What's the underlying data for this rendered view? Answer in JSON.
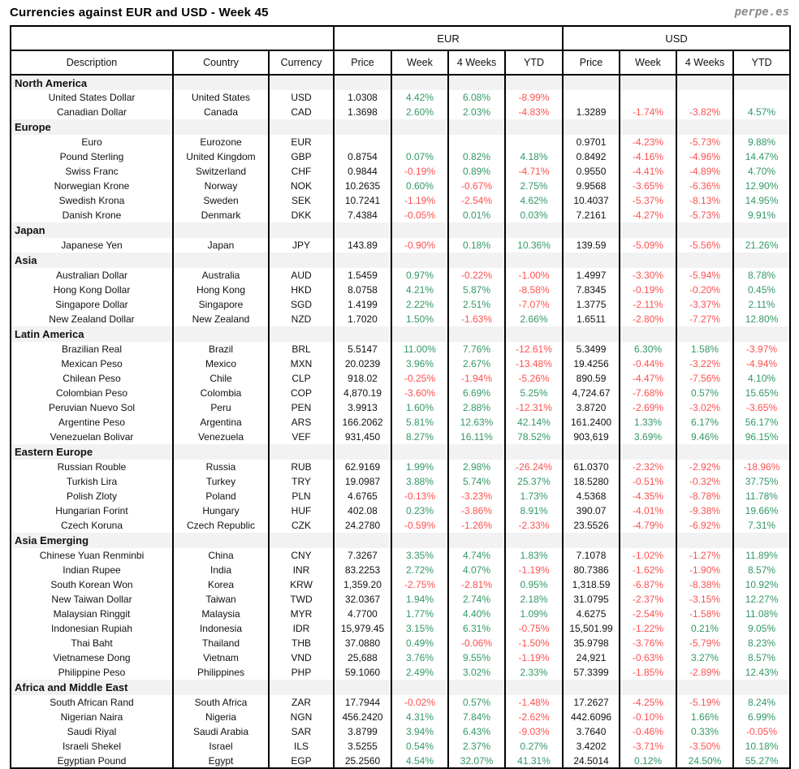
{
  "page": {
    "title": "Currencies against EUR and USD - Week 45",
    "brand": "perpe.es"
  },
  "table": {
    "group_headers": {
      "eur": "EUR",
      "usd": "USD"
    },
    "columns": [
      "Description",
      "Country",
      "Currency",
      "Price",
      "Week",
      "4 Weeks",
      "YTD",
      "Price",
      "Week",
      "4 Weeks",
      "YTD"
    ],
    "colors": {
      "positive": "#339966",
      "negative": "#FF5050",
      "text": "#111111",
      "section_bg": "#F2F2F2"
    },
    "sections": [
      {
        "name": "North America",
        "rows": [
          {
            "description": "United States Dollar",
            "country": "United States",
            "code": "USD",
            "values": [
              "1.0308",
              "4.42%",
              "6.08%",
              "-8.99%",
              "",
              "",
              "",
              ""
            ]
          },
          {
            "description": "Canadian Dollar",
            "country": "Canada",
            "code": "CAD",
            "values": [
              "1.3698",
              "2.60%",
              "2.03%",
              "-4.83%",
              "1.3289",
              "-1.74%",
              "-3.82%",
              "4.57%"
            ]
          }
        ]
      },
      {
        "name": "Europe",
        "rows": [
          {
            "description": "Euro",
            "country": "Eurozone",
            "code": "EUR",
            "values": [
              "",
              "",
              "",
              "",
              "0.9701",
              "-4.23%",
              "-5.73%",
              "9.88%"
            ]
          },
          {
            "description": "Pound Sterling",
            "country": "United Kingdom",
            "code": "GBP",
            "values": [
              "0.8754",
              "0.07%",
              "0.82%",
              "4.18%",
              "0.8492",
              "-4.16%",
              "-4.96%",
              "14.47%"
            ]
          },
          {
            "description": "Swiss Franc",
            "country": "Switzerland",
            "code": "CHF",
            "values": [
              "0.9844",
              "-0.19%",
              "0.89%",
              "-4.71%",
              "0.9550",
              "-4.41%",
              "-4.89%",
              "4.70%"
            ]
          },
          {
            "description": "Norwegian Krone",
            "country": "Norway",
            "code": "NOK",
            "values": [
              "10.2635",
              "0.60%",
              "-0.67%",
              "2.75%",
              "9.9568",
              "-3.65%",
              "-6.36%",
              "12.90%"
            ]
          },
          {
            "description": "Swedish Krona",
            "country": "Sweden",
            "code": "SEK",
            "values": [
              "10.7241",
              "-1.19%",
              "-2.54%",
              "4.62%",
              "10.4037",
              "-5.37%",
              "-8.13%",
              "14.95%"
            ]
          },
          {
            "description": "Danish Krone",
            "country": "Denmark",
            "code": "DKK",
            "values": [
              "7.4384",
              "-0.05%",
              "0.01%",
              "0.03%",
              "7.2161",
              "-4.27%",
              "-5.73%",
              "9.91%"
            ]
          }
        ]
      },
      {
        "name": "Japan",
        "rows": [
          {
            "description": "Japanese Yen",
            "country": "Japan",
            "code": "JPY",
            "values": [
              "143.89",
              "-0.90%",
              "0.18%",
              "10.36%",
              "139.59",
              "-5.09%",
              "-5.56%",
              "21.26%"
            ]
          }
        ]
      },
      {
        "name": "Asia",
        "rows": [
          {
            "description": "Australian Dollar",
            "country": "Australia",
            "code": "AUD",
            "values": [
              "1.5459",
              "0.97%",
              "-0.22%",
              "-1.00%",
              "1.4997",
              "-3.30%",
              "-5.94%",
              "8.78%"
            ]
          },
          {
            "description": "Hong Kong Dollar",
            "country": "Hong Kong",
            "code": "HKD",
            "values": [
              "8.0758",
              "4.21%",
              "5.87%",
              "-8.58%",
              "7.8345",
              "-0.19%",
              "-0.20%",
              "0.45%"
            ]
          },
          {
            "description": "Singapore Dollar",
            "country": "Singapore",
            "code": "SGD",
            "values": [
              "1.4199",
              "2.22%",
              "2.51%",
              "-7.07%",
              "1.3775",
              "-2.11%",
              "-3.37%",
              "2.11%"
            ]
          },
          {
            "description": "New Zealand Dollar",
            "country": "New Zealand",
            "code": "NZD",
            "values": [
              "1.7020",
              "1.50%",
              "-1.63%",
              "2.66%",
              "1.6511",
              "-2.80%",
              "-7.27%",
              "12.80%"
            ]
          }
        ]
      },
      {
        "name": "Latin America",
        "rows": [
          {
            "description": "Brazilian Real",
            "country": "Brazil",
            "code": "BRL",
            "values": [
              "5.5147",
              "11.00%",
              "7.76%",
              "-12.61%",
              "5.3499",
              "6.30%",
              "1.58%",
              "-3.97%"
            ]
          },
          {
            "description": "Mexican Peso",
            "country": "Mexico",
            "code": "MXN",
            "values": [
              "20.0239",
              "3.96%",
              "2.67%",
              "-13.48%",
              "19.4256",
              "-0.44%",
              "-3.22%",
              "-4.94%"
            ]
          },
          {
            "description": "Chilean Peso",
            "country": "Chile",
            "code": "CLP",
            "values": [
              "918.02",
              "-0.25%",
              "-1.94%",
              "-5.26%",
              "890.59",
              "-4.47%",
              "-7.56%",
              "4.10%"
            ]
          },
          {
            "description": "Colombian Peso",
            "country": "Colombia",
            "code": "COP",
            "values": [
              "4,870.19",
              "-3.60%",
              "6.69%",
              "5.25%",
              "4,724.67",
              "-7.68%",
              "0.57%",
              "15.65%"
            ]
          },
          {
            "description": "Peruvian Nuevo Sol",
            "country": "Peru",
            "code": "PEN",
            "values": [
              "3.9913",
              "1.60%",
              "2.88%",
              "-12.31%",
              "3.8720",
              "-2.69%",
              "-3.02%",
              "-3.65%"
            ]
          },
          {
            "description": "Argentine Peso",
            "country": "Argentina",
            "code": "ARS",
            "values": [
              "166.2062",
              "5.81%",
              "12.63%",
              "42.14%",
              "161.2400",
              "1.33%",
              "6.17%",
              "56.17%"
            ]
          },
          {
            "description": "Venezuelan Bolivar",
            "country": "Venezuela",
            "code": "VEF",
            "values": [
              "931,450",
              "8.27%",
              "16.11%",
              "78.52%",
              "903,619",
              "3.69%",
              "9.46%",
              "96.15%"
            ]
          }
        ]
      },
      {
        "name": "Eastern Europe",
        "rows": [
          {
            "description": "Russian Rouble",
            "country": "Russia",
            "code": "RUB",
            "values": [
              "62.9169",
              "1.99%",
              "2.98%",
              "-26.24%",
              "61.0370",
              "-2.32%",
              "-2.92%",
              "-18.96%"
            ]
          },
          {
            "description": "Turkish Lira",
            "country": "Turkey",
            "code": "TRY",
            "values": [
              "19.0987",
              "3.88%",
              "5.74%",
              "25.37%",
              "18.5280",
              "-0.51%",
              "-0.32%",
              "37.75%"
            ]
          },
          {
            "description": "Polish Zloty",
            "country": "Poland",
            "code": "PLN",
            "values": [
              "4.6765",
              "-0.13%",
              "-3.23%",
              "1.73%",
              "4.5368",
              "-4.35%",
              "-8.78%",
              "11.78%"
            ]
          },
          {
            "description": "Hungarian Forint",
            "country": "Hungary",
            "code": "HUF",
            "values": [
              "402.08",
              "0.23%",
              "-3.86%",
              "8.91%",
              "390.07",
              "-4.01%",
              "-9.38%",
              "19.66%"
            ]
          },
          {
            "description": "Czech Koruna",
            "country": "Czech Republic",
            "code": "CZK",
            "values": [
              "24.2780",
              "-0.59%",
              "-1.26%",
              "-2.33%",
              "23.5526",
              "-4.79%",
              "-6.92%",
              "7.31%"
            ]
          }
        ]
      },
      {
        "name": "Asia Emerging",
        "rows": [
          {
            "description": "Chinese Yuan Renminbi",
            "country": "China",
            "code": "CNY",
            "values": [
              "7.3267",
              "3.35%",
              "4.74%",
              "1.83%",
              "7.1078",
              "-1.02%",
              "-1.27%",
              "11.89%"
            ]
          },
          {
            "description": "Indian Rupee",
            "country": "India",
            "code": "INR",
            "values": [
              "83.2253",
              "2.72%",
              "4.07%",
              "-1.19%",
              "80.7386",
              "-1.62%",
              "-1.90%",
              "8.57%"
            ]
          },
          {
            "description": "South Korean Won",
            "country": "Korea",
            "code": "KRW",
            "values": [
              "1,359.20",
              "-2.75%",
              "-2.81%",
              "0.95%",
              "1,318.59",
              "-6.87%",
              "-8.38%",
              "10.92%"
            ]
          },
          {
            "description": "New Taiwan Dollar",
            "country": "Taiwan",
            "code": "TWD",
            "values": [
              "32.0367",
              "1.94%",
              "2.74%",
              "2.18%",
              "31.0795",
              "-2.37%",
              "-3.15%",
              "12.27%"
            ]
          },
          {
            "description": "Malaysian Ringgit",
            "country": "Malaysia",
            "code": "MYR",
            "values": [
              "4.7700",
              "1.77%",
              "4.40%",
              "1.09%",
              "4.6275",
              "-2.54%",
              "-1.58%",
              "11.08%"
            ]
          },
          {
            "description": "Indonesian Rupiah",
            "country": "Indonesia",
            "code": "IDR",
            "values": [
              "15,979.45",
              "3.15%",
              "6.31%",
              "-0.75%",
              "15,501.99",
              "-1.22%",
              "0.21%",
              "9.05%"
            ]
          },
          {
            "description": "Thai Baht",
            "country": "Thailand",
            "code": "THB",
            "values": [
              "37.0880",
              "0.49%",
              "-0.06%",
              "-1.50%",
              "35.9798",
              "-3.76%",
              "-5.79%",
              "8.23%"
            ]
          },
          {
            "description": "Vietnamese Dong",
            "country": "Vietnam",
            "code": "VND",
            "values": [
              "25,688",
              "3.76%",
              "9.55%",
              "-1.19%",
              "24,921",
              "-0.63%",
              "3.27%",
              "8.57%"
            ]
          },
          {
            "description": "Philippine Peso",
            "country": "Philippines",
            "code": "PHP",
            "values": [
              "59.1060",
              "2.49%",
              "3.02%",
              "2.33%",
              "57.3399",
              "-1.85%",
              "-2.89%",
              "12.43%"
            ]
          }
        ]
      },
      {
        "name": "Africa and Middle East",
        "rows": [
          {
            "description": "South African Rand",
            "country": "South Africa",
            "code": "ZAR",
            "values": [
              "17.7944",
              "-0.02%",
              "0.57%",
              "-1.48%",
              "17.2627",
              "-4.25%",
              "-5.19%",
              "8.24%"
            ]
          },
          {
            "description": "Nigerian Naira",
            "country": "Nigeria",
            "code": "NGN",
            "values": [
              "456.2420",
              "4.31%",
              "7.84%",
              "-2.62%",
              "442.6096",
              "-0.10%",
              "1.66%",
              "6.99%"
            ]
          },
          {
            "description": "Saudi Riyal",
            "country": "Saudi Arabia",
            "code": "SAR",
            "values": [
              "3.8799",
              "3.94%",
              "6.43%",
              "-9.03%",
              "3.7640",
              "-0.46%",
              "0.33%",
              "-0.05%"
            ]
          },
          {
            "description": "Israeli Shekel",
            "country": "Israel",
            "code": "ILS",
            "values": [
              "3.5255",
              "0.54%",
              "2.37%",
              "0.27%",
              "3.4202",
              "-3.71%",
              "-3.50%",
              "10.18%"
            ]
          },
          {
            "description": "Egyptian Pound",
            "country": "Egypt",
            "code": "EGP",
            "values": [
              "25.2560",
              "4.54%",
              "32.07%",
              "41.31%",
              "24.5014",
              "0.12%",
              "24.50%",
              "55.27%"
            ]
          }
        ]
      }
    ]
  }
}
